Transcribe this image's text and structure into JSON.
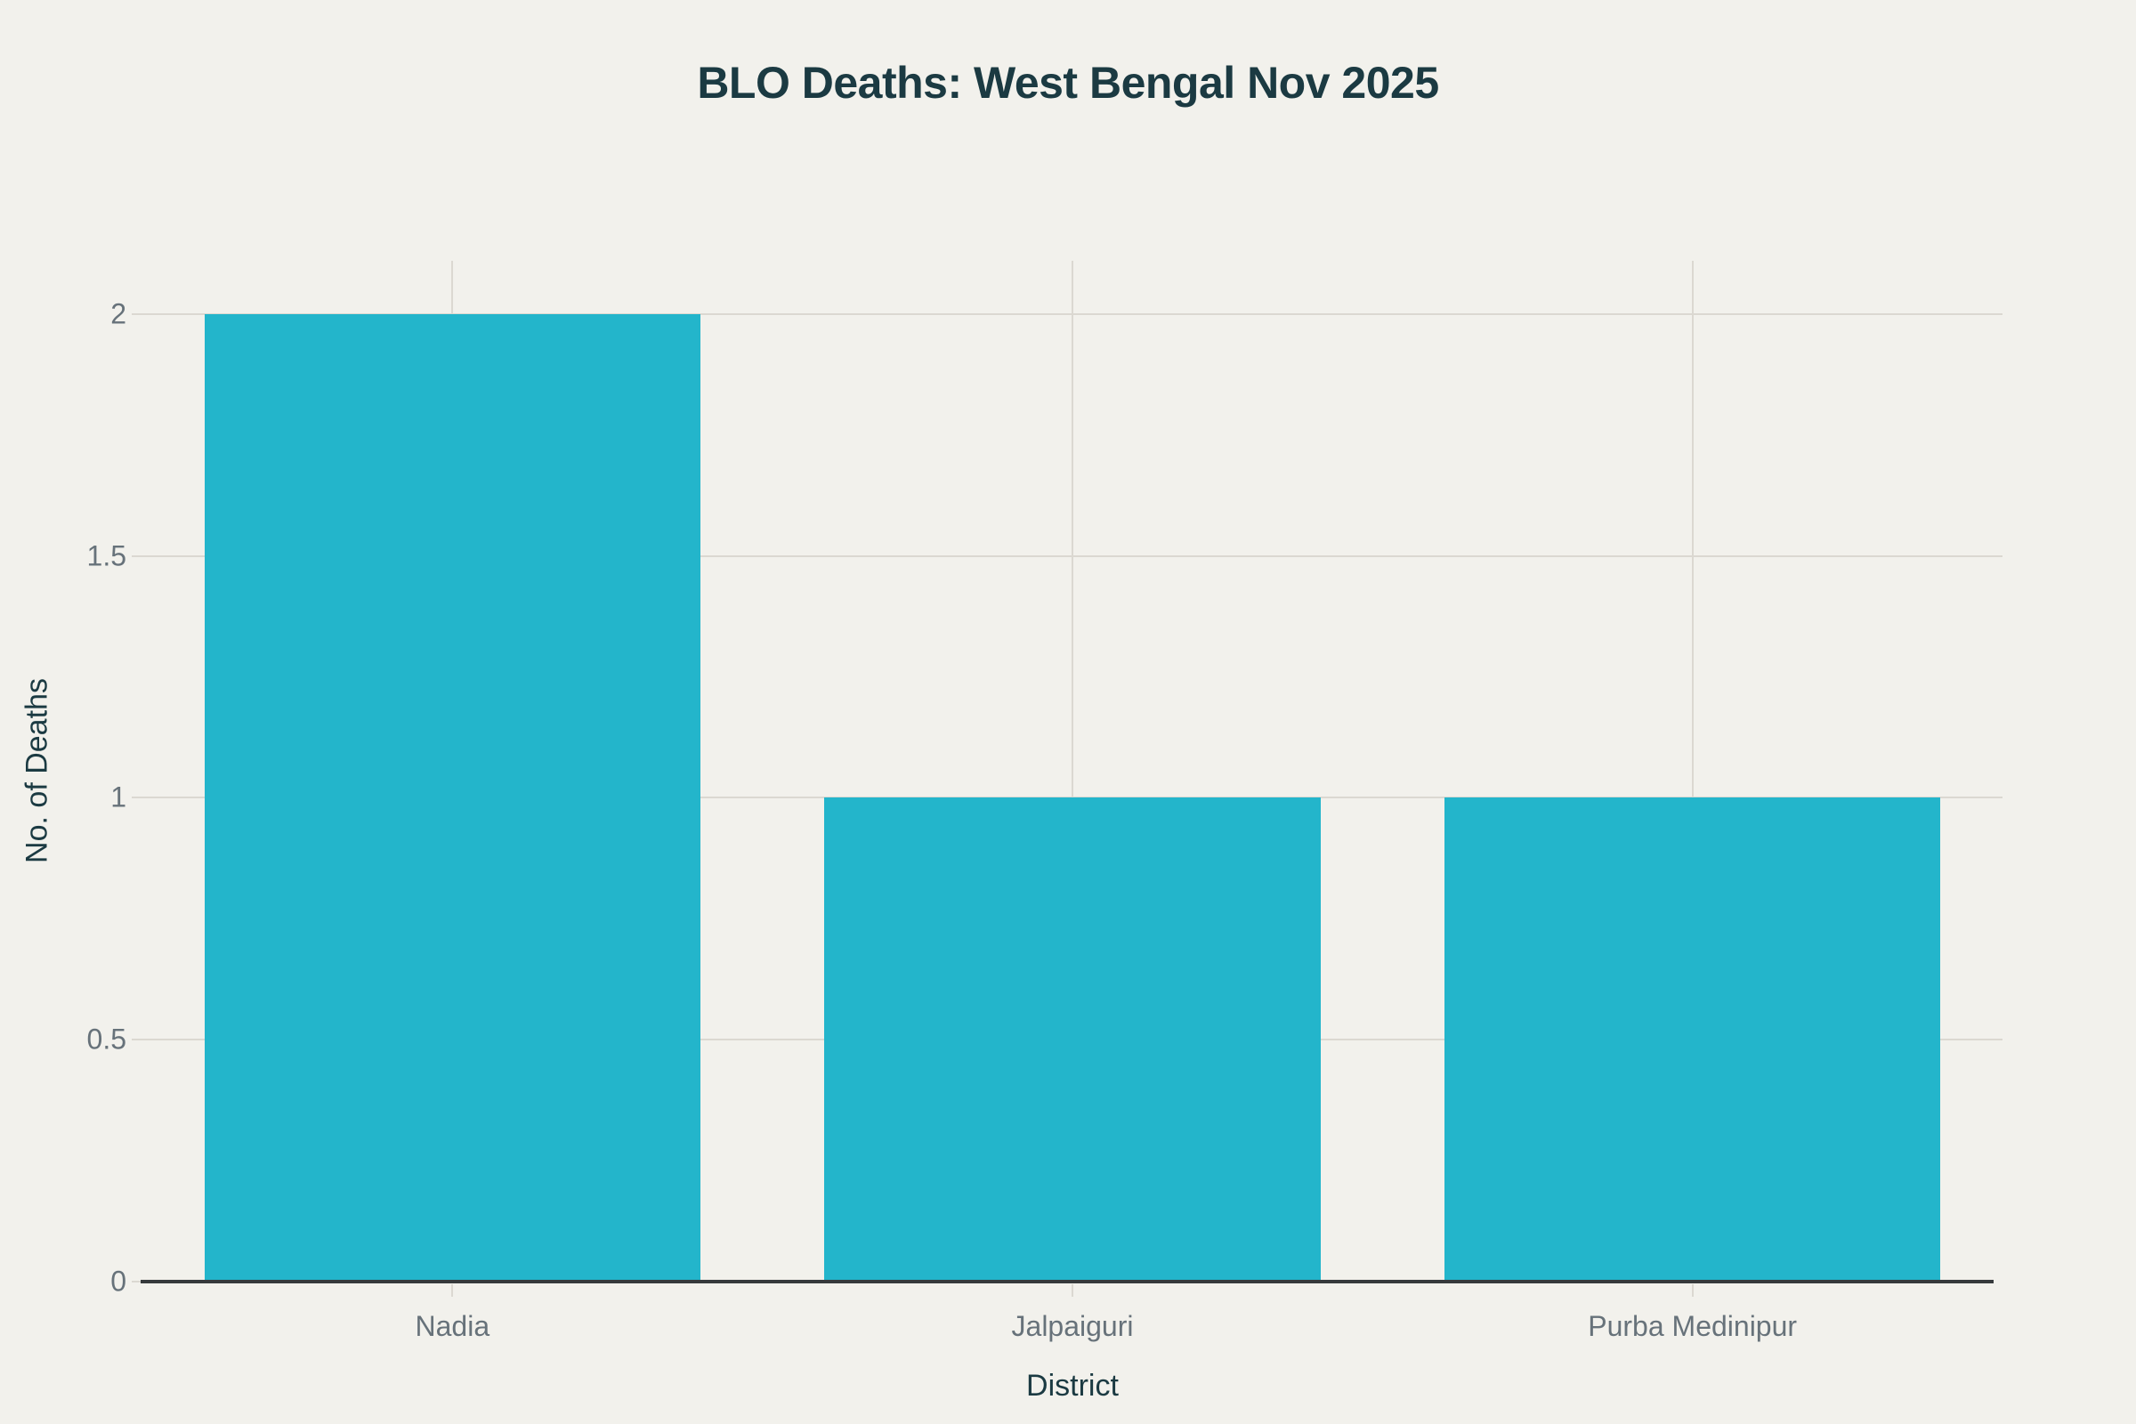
{
  "chart_data": {
    "type": "bar",
    "title": "BLO Deaths: West Bengal Nov 2025",
    "xlabel": "District",
    "ylabel": "No. of Deaths",
    "categories": [
      "Nadia",
      "Jalpaiguri",
      "Purba Medinipur"
    ],
    "values": [
      2,
      1,
      1
    ],
    "series": [
      {
        "name": "No. of Deaths",
        "values": [
          2,
          1,
          1
        ]
      }
    ],
    "ytick_values": [
      0,
      0.5,
      1,
      1.5,
      2
    ],
    "ytick_labels": [
      "0",
      "0.5",
      "1",
      "1.5",
      "2"
    ],
    "ylim": [
      0,
      2.11
    ],
    "grid": true,
    "legend_position": "none",
    "bar_width_fraction": 0.8,
    "colors": {
      "bar": "#23b5cb",
      "background": "#f2f1ec",
      "title_text": "#1b3a42",
      "axis_title_text": "#1b3a42",
      "tick_text": "#67727a",
      "gridline": "#dbd8d1",
      "axis_line": "#363a3c"
    }
  }
}
